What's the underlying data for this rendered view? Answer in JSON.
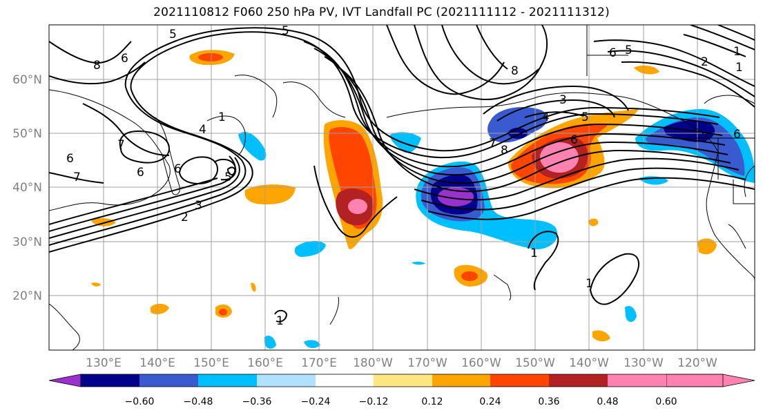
{
  "title": "2021110812 F060 250 hPa PV, IVT Landfall PC (2021111112 - 2021111312)",
  "map": {
    "lat_labels": [
      "60°N",
      "50°N",
      "40°N",
      "30°N",
      "20°N"
    ],
    "lon_labels": [
      "130°E",
      "140°E",
      "150°E",
      "160°E",
      "170°E",
      "180°W",
      "170°W",
      "160°W",
      "150°W",
      "140°W",
      "130°W",
      "120°W"
    ],
    "extent": {
      "lon_min": 120,
      "lon_max": 250,
      "lat_min": 10,
      "lat_max": 70
    },
    "gridlines": true,
    "contour_labels": [
      "8",
      "6",
      "5",
      "5",
      "7",
      "6",
      "4",
      "1",
      "6",
      "7",
      "6",
      "5",
      "3",
      "2",
      "8",
      "3",
      "4",
      "5",
      "6",
      "7",
      "8",
      "6",
      "5",
      "1",
      "2",
      "1",
      "6",
      "1",
      "1",
      "1"
    ]
  },
  "colorbar": {
    "tick_labels": [
      "−0.60",
      "−0.48",
      "−0.36",
      "−0.24",
      "−0.12",
      "0.12",
      "0.24",
      "0.36",
      "0.48",
      "0.60"
    ],
    "colors": [
      "#9932cc",
      "#00008b",
      "#3a5bd0",
      "#00bfff",
      "#b0e2ff",
      "#ffffff",
      "#ffe680",
      "#ffa500",
      "#ff4500",
      "#b22222",
      "#ff82b0"
    ],
    "extend": "both"
  }
}
